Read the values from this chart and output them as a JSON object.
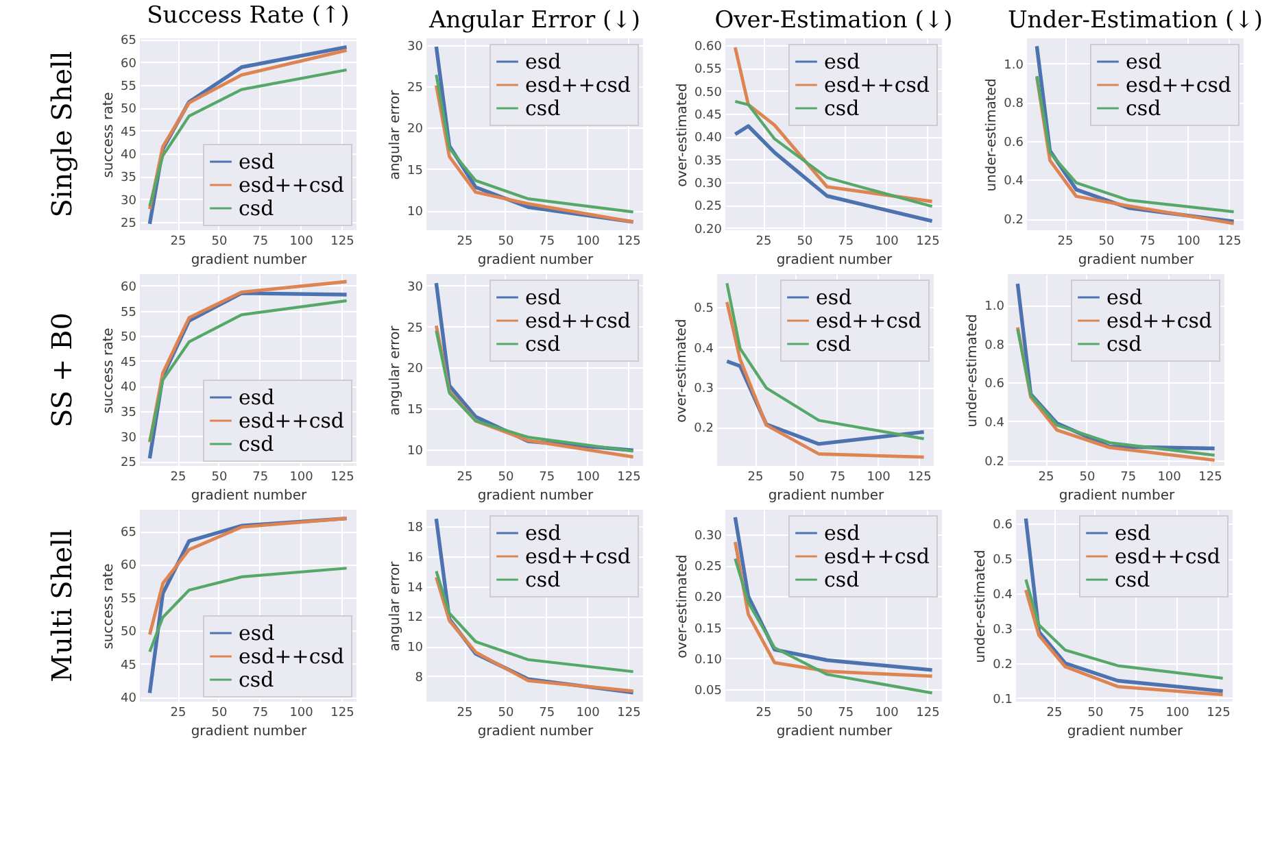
{
  "chart_data": [
    {
      "type": "line",
      "title": "Success Rate (↑)",
      "xlabel": "gradient number",
      "ylabel": "success rate",
      "annotations": [
        "Single Shell"
      ],
      "x": [
        8,
        16,
        32,
        64,
        128
      ],
      "xlim": [
        2,
        134
      ],
      "xticks": [
        25,
        50,
        75,
        100,
        125
      ],
      "ylim": [
        23.2,
        65.2
      ],
      "yticks": [
        25,
        30,
        35,
        40,
        45,
        50,
        55,
        60,
        65
      ],
      "grid": true,
      "legend": "bottom right",
      "series": [
        {
          "name": "esd",
          "color": "#4c72b0",
          "values": [
            24.6,
            41.0,
            51.3,
            58.9,
            63.3
          ]
        },
        {
          "name": "esd++csd",
          "color": "#dd8452",
          "values": [
            27.8,
            41.5,
            51.1,
            57.2,
            62.6
          ]
        },
        {
          "name": "csd",
          "color": "#55a868",
          "values": [
            28.5,
            39.5,
            48.2,
            54.0,
            58.3
          ]
        }
      ]
    },
    {
      "type": "line",
      "title": "Angular Error (↓)",
      "xlabel": "gradient number",
      "ylabel": "angular error",
      "x": [
        8,
        16,
        32,
        64,
        128
      ],
      "xlim": [
        2,
        134
      ],
      "xticks": [
        25,
        50,
        75,
        100,
        125
      ],
      "ylim": [
        7.6,
        30.8
      ],
      "yticks": [
        10,
        15,
        20,
        25,
        30
      ],
      "grid": true,
      "legend": "top right",
      "series": [
        {
          "name": "esd",
          "color": "#4c72b0",
          "values": [
            29.8,
            17.8,
            12.8,
            10.4,
            8.6
          ]
        },
        {
          "name": "esd++csd",
          "color": "#dd8452",
          "values": [
            25.1,
            16.5,
            12.2,
            10.8,
            8.6
          ]
        },
        {
          "name": "csd",
          "color": "#55a868",
          "values": [
            26.4,
            17.5,
            13.6,
            11.4,
            9.8
          ]
        }
      ]
    },
    {
      "type": "line",
      "title": "Over-Estimation (↓)",
      "xlabel": "gradient number",
      "ylabel": "over-estimated",
      "x": [
        8,
        16,
        32,
        64,
        128
      ],
      "xlim": [
        2,
        134
      ],
      "xticks": [
        25,
        50,
        75,
        100,
        125
      ],
      "ylim": [
        0.195,
        0.615
      ],
      "yticks": [
        {
          "value": 0.2,
          "label": "0.20"
        },
        0.25,
        {
          "value": 0.3,
          "label": "0.30"
        },
        0.35,
        {
          "value": 0.4,
          "label": "0.40"
        },
        0.45,
        {
          "value": 0.5,
          "label": "0.50"
        },
        0.55,
        {
          "value": 0.6,
          "label": "0.60"
        }
      ],
      "grid": true,
      "legend": "top right",
      "series": [
        {
          "name": "esd",
          "color": "#4c72b0",
          "values": [
            0.405,
            0.423,
            0.365,
            0.27,
            0.215
          ]
        },
        {
          "name": "esd++csd",
          "color": "#dd8452",
          "values": [
            0.595,
            0.47,
            0.425,
            0.29,
            0.258
          ]
        },
        {
          "name": "csd",
          "color": "#55a868",
          "values": [
            0.477,
            0.47,
            0.395,
            0.31,
            0.247
          ]
        }
      ]
    },
    {
      "type": "line",
      "title": "Under-Estimation (↓)",
      "xlabel": "gradient number",
      "ylabel": "under-estimated",
      "x": [
        8,
        16,
        32,
        64,
        128
      ],
      "xlim": [
        2,
        134
      ],
      "xticks": [
        25,
        50,
        75,
        100,
        125
      ],
      "ylim": [
        0.14,
        1.13
      ],
      "yticks": [
        0.2,
        0.4,
        0.6,
        0.8,
        {
          "value": 1,
          "label": "1.0"
        }
      ],
      "grid": true,
      "legend": "top right",
      "series": [
        {
          "name": "esd",
          "color": "#4c72b0",
          "values": [
            1.09,
            0.55,
            0.35,
            0.255,
            0.185
          ]
        },
        {
          "name": "esd++csd",
          "color": "#dd8452",
          "values": [
            0.93,
            0.5,
            0.315,
            0.265,
            0.175
          ]
        },
        {
          "name": "csd",
          "color": "#55a868",
          "values": [
            0.935,
            0.54,
            0.385,
            0.295,
            0.235
          ]
        }
      ]
    },
    {
      "type": "line",
      "xlabel": "gradient number",
      "ylabel": "success rate",
      "annotations": [
        "SS + B0"
      ],
      "x": [
        8,
        16,
        32,
        64,
        128
      ],
      "xlim": [
        2,
        134
      ],
      "xticks": [
        25,
        50,
        75,
        100,
        125
      ],
      "ylim": [
        24.1,
        62.3
      ],
      "yticks": [
        25,
        30,
        35,
        40,
        45,
        50,
        55,
        60
      ],
      "grid": true,
      "legend": "bottom right",
      "series": [
        {
          "name": "esd",
          "color": "#4c72b0",
          "values": [
            25.6,
            42.0,
            53.0,
            58.5,
            58.2
          ]
        },
        {
          "name": "esd++csd",
          "color": "#dd8452",
          "values": [
            28.8,
            42.6,
            53.6,
            58.7,
            60.8
          ]
        },
        {
          "name": "csd",
          "color": "#55a868",
          "values": [
            29.0,
            41.2,
            48.8,
            54.2,
            57.0
          ]
        }
      ]
    },
    {
      "type": "line",
      "xlabel": "gradient number",
      "ylabel": "angular error",
      "x": [
        8,
        16,
        32,
        64,
        128
      ],
      "xlim": [
        2,
        134
      ],
      "xticks": [
        25,
        50,
        75,
        100,
        125
      ],
      "ylim": [
        8.0,
        31.4
      ],
      "yticks": [
        10,
        15,
        20,
        25,
        30
      ],
      "grid": true,
      "legend": "top right",
      "series": [
        {
          "name": "esd",
          "color": "#4c72b0",
          "values": [
            30.3,
            17.8,
            14.0,
            11.0,
            9.9
          ]
        },
        {
          "name": "esd++csd",
          "color": "#dd8452",
          "values": [
            25.1,
            17.1,
            13.5,
            11.1,
            9.1
          ]
        },
        {
          "name": "csd",
          "color": "#55a868",
          "values": [
            24.5,
            16.9,
            13.5,
            11.5,
            9.8
          ]
        }
      ]
    },
    {
      "type": "line",
      "xlabel": "gradient number",
      "ylabel": "over-estimated",
      "x": [
        8,
        16,
        32,
        64,
        128
      ],
      "xlim": [
        2,
        134
      ],
      "xticks": [
        25,
        50,
        75,
        100,
        125
      ],
      "ylim": [
        0.103,
        0.583
      ],
      "yticks": [
        0.2,
        0.3,
        0.4,
        0.5
      ],
      "grid": true,
      "legend": "top right",
      "series": [
        {
          "name": "esd",
          "color": "#4c72b0",
          "values": [
            0.365,
            0.353,
            0.207,
            0.158,
            0.188
          ]
        },
        {
          "name": "esd++csd",
          "color": "#dd8452",
          "values": [
            0.513,
            0.37,
            0.205,
            0.133,
            0.125
          ]
        },
        {
          "name": "csd",
          "color": "#55a868",
          "values": [
            0.56,
            0.397,
            0.298,
            0.217,
            0.171
          ]
        }
      ]
    },
    {
      "type": "line",
      "xlabel": "gradient number",
      "ylabel": "under-estimated",
      "x": [
        8,
        16,
        32,
        64,
        128
      ],
      "xlim": [
        2,
        134
      ],
      "xticks": [
        25,
        50,
        75,
        100,
        125
      ],
      "ylim": [
        0.17,
        1.16
      ],
      "yticks": [
        0.2,
        0.4,
        0.6,
        0.8,
        {
          "value": 1,
          "label": "1.0"
        }
      ],
      "grid": true,
      "legend": "top right",
      "series": [
        {
          "name": "esd",
          "color": "#4c72b0",
          "values": [
            1.11,
            0.54,
            0.39,
            0.27,
            0.26
          ]
        },
        {
          "name": "esd++csd",
          "color": "#dd8452",
          "values": [
            0.885,
            0.525,
            0.355,
            0.265,
            0.2
          ]
        },
        {
          "name": "csd",
          "color": "#55a868",
          "values": [
            0.875,
            0.535,
            0.38,
            0.29,
            0.225
          ]
        }
      ]
    },
    {
      "type": "line",
      "xlabel": "gradient number",
      "ylabel": "success rate",
      "annotations": [
        "Multi Shell"
      ],
      "x": [
        8,
        16,
        32,
        64,
        128
      ],
      "xlim": [
        2,
        134
      ],
      "xticks": [
        25,
        50,
        75,
        100,
        125
      ],
      "ylim": [
        39.3,
        68.2
      ],
      "yticks": [
        40,
        45,
        50,
        55,
        60,
        65
      ],
      "grid": true,
      "legend": "bottom right",
      "series": [
        {
          "name": "esd",
          "color": "#4c72b0",
          "values": [
            40.6,
            55.6,
            63.5,
            65.8,
            66.9
          ]
        },
        {
          "name": "esd++csd",
          "color": "#dd8452",
          "values": [
            49.4,
            57.1,
            62.2,
            65.6,
            66.9
          ]
        },
        {
          "name": "csd",
          "color": "#55a868",
          "values": [
            46.8,
            52.0,
            56.1,
            58.1,
            59.4
          ]
        }
      ]
    },
    {
      "type": "line",
      "xlabel": "gradient number",
      "ylabel": "angular error",
      "x": [
        8,
        16,
        32,
        64,
        128
      ],
      "xlim": [
        2,
        134
      ],
      "xticks": [
        25,
        50,
        75,
        100,
        125
      ],
      "ylim": [
        6.3,
        19.1
      ],
      "yticks": [
        8,
        10,
        12,
        14,
        16,
        18
      ],
      "grid": true,
      "legend": "top right",
      "series": [
        {
          "name": "esd",
          "color": "#4c72b0",
          "values": [
            18.5,
            11.8,
            9.5,
            7.8,
            6.9
          ]
        },
        {
          "name": "esd++csd",
          "color": "#dd8452",
          "values": [
            14.6,
            11.7,
            9.6,
            7.7,
            7.0
          ]
        },
        {
          "name": "csd",
          "color": "#55a868",
          "values": [
            15.0,
            12.2,
            10.3,
            9.1,
            8.3
          ]
        }
      ]
    },
    {
      "type": "line",
      "xlabel": "gradient number",
      "ylabel": "over-estimated",
      "x": [
        8,
        16,
        32,
        64,
        128
      ],
      "xlim": [
        2,
        134
      ],
      "xticks": [
        25,
        50,
        75,
        100,
        125
      ],
      "ylim": [
        0.03,
        0.34
      ],
      "yticks": [
        0.05,
        {
          "value": 0.1,
          "label": "0.10"
        },
        0.15,
        {
          "value": 0.2,
          "label": "0.20"
        },
        0.25,
        {
          "value": 0.3,
          "label": "0.30"
        }
      ],
      "grid": true,
      "legend": "top right",
      "series": [
        {
          "name": "esd",
          "color": "#4c72b0",
          "values": [
            0.328,
            0.2,
            0.114,
            0.097,
            0.081
          ]
        },
        {
          "name": "esd++csd",
          "color": "#dd8452",
          "values": [
            0.288,
            0.171,
            0.093,
            0.079,
            0.071
          ]
        },
        {
          "name": "csd",
          "color": "#55a868",
          "values": [
            0.261,
            0.19,
            0.117,
            0.074,
            0.044
          ]
        }
      ]
    },
    {
      "type": "line",
      "xlabel": "gradient number",
      "ylabel": "under-estimated",
      "x": [
        8,
        16,
        32,
        64,
        128
      ],
      "xlim": [
        2,
        134
      ],
      "xticks": [
        25,
        50,
        75,
        100,
        125
      ],
      "ylim": [
        0.09,
        0.64
      ],
      "yticks": [
        0.1,
        0.2,
        0.3,
        0.4,
        0.5,
        0.6
      ],
      "grid": true,
      "legend": "top right",
      "series": [
        {
          "name": "esd",
          "color": "#4c72b0",
          "values": [
            0.615,
            0.29,
            0.2,
            0.15,
            0.12
          ]
        },
        {
          "name": "esd++csd",
          "color": "#dd8452",
          "values": [
            0.41,
            0.28,
            0.19,
            0.133,
            0.11
          ]
        },
        {
          "name": "csd",
          "color": "#55a868",
          "values": [
            0.44,
            0.31,
            0.238,
            0.193,
            0.157
          ]
        }
      ]
    }
  ]
}
